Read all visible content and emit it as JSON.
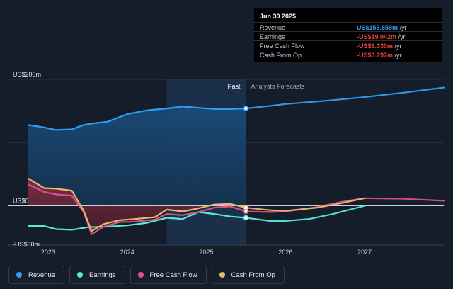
{
  "colors": {
    "background": "#151c2a",
    "revenue": "#2e9ef0",
    "earnings": "#58e8d8",
    "free_cash_flow": "#d9518a",
    "cash_from_op": "#e8b86a",
    "past_shade": "#1c3a5c"
  },
  "tooltip": {
    "date": "Jun 30 2025",
    "rows": [
      {
        "label": "Revenue",
        "value": "US$153.859m",
        "unit": "/yr",
        "color": "#2e9ef0"
      },
      {
        "label": "Earnings",
        "value": "-US$19.042m",
        "unit": "/yr",
        "color": "#e8453c"
      },
      {
        "label": "Free Cash Flow",
        "value": "-US$9.330m",
        "unit": "/yr",
        "color": "#e8453c"
      },
      {
        "label": "Cash From Op",
        "value": "-US$3.297m",
        "unit": "/yr",
        "color": "#e8453c"
      }
    ]
  },
  "legend": [
    {
      "label": "Revenue",
      "color": "#2e9ef0"
    },
    {
      "label": "Earnings",
      "color": "#58e8d8"
    },
    {
      "label": "Free Cash Flow",
      "color": "#d9518a"
    },
    {
      "label": "Cash From Op",
      "color": "#e8b86a"
    }
  ],
  "chart_data": {
    "type": "line",
    "past_label": "Past",
    "forecast_label": "Analysts Forecasts",
    "y_tick_labels": [
      {
        "value": 200,
        "label": "US$200m"
      },
      {
        "value": 0,
        "label": "US$0"
      },
      {
        "value": -60,
        "label": "-US$60m"
      }
    ],
    "x_ticks": [
      2023,
      2024,
      2025,
      2026,
      2027
    ],
    "xlim": [
      2022.5,
      2028.0
    ],
    "ylim": [
      -60,
      200
    ],
    "past_end": 2025.5,
    "highlight_start": 2024.5,
    "series": [
      {
        "name": "Revenue",
        "key": "revenue",
        "points": [
          [
            2022.75,
            128
          ],
          [
            2022.95,
            124
          ],
          [
            2023.1,
            120
          ],
          [
            2023.3,
            121
          ],
          [
            2023.45,
            128
          ],
          [
            2023.6,
            131
          ],
          [
            2023.75,
            133
          ],
          [
            2024.0,
            145
          ],
          [
            2024.25,
            151
          ],
          [
            2024.5,
            154
          ],
          [
            2024.7,
            157
          ],
          [
            2024.9,
            155
          ],
          [
            2025.1,
            153
          ],
          [
            2025.3,
            153
          ],
          [
            2025.5,
            154
          ]
        ]
      },
      {
        "name": "Revenue Forecast",
        "key": "revenue",
        "forecast": true,
        "points": [
          [
            2025.5,
            154
          ],
          [
            2025.8,
            158
          ],
          [
            2026.0,
            161
          ],
          [
            2026.5,
            166
          ],
          [
            2027.0,
            172
          ],
          [
            2027.5,
            179
          ],
          [
            2028.0,
            187
          ]
        ]
      },
      {
        "name": "Earnings",
        "key": "earnings",
        "points": [
          [
            2022.75,
            -32
          ],
          [
            2022.95,
            -32
          ],
          [
            2023.1,
            -37
          ],
          [
            2023.3,
            -38
          ],
          [
            2023.5,
            -34
          ],
          [
            2023.75,
            -33
          ],
          [
            2024.0,
            -31
          ],
          [
            2024.25,
            -27
          ],
          [
            2024.5,
            -19
          ],
          [
            2024.7,
            -21
          ],
          [
            2024.9,
            -10
          ],
          [
            2025.1,
            -13
          ],
          [
            2025.3,
            -17
          ],
          [
            2025.5,
            -19
          ]
        ]
      },
      {
        "name": "Earnings Forecast",
        "key": "earnings",
        "forecast": true,
        "points": [
          [
            2025.5,
            -19
          ],
          [
            2025.8,
            -24
          ],
          [
            2026.0,
            -24
          ],
          [
            2026.3,
            -21
          ],
          [
            2026.6,
            -13
          ],
          [
            2027.0,
            0
          ]
        ]
      },
      {
        "name": "Free Cash Flow",
        "key": "free_cash_flow",
        "points": [
          [
            2022.75,
            34
          ],
          [
            2022.95,
            22
          ],
          [
            2023.1,
            18
          ],
          [
            2023.3,
            16
          ],
          [
            2023.45,
            -10
          ],
          [
            2023.55,
            -45
          ],
          [
            2023.7,
            -33
          ],
          [
            2023.9,
            -26
          ],
          [
            2024.1,
            -25
          ],
          [
            2024.35,
            -22
          ],
          [
            2024.5,
            -13
          ],
          [
            2024.7,
            -15
          ],
          [
            2024.9,
            -10
          ],
          [
            2025.1,
            -3
          ],
          [
            2025.3,
            -1
          ],
          [
            2025.5,
            -9
          ]
        ]
      },
      {
        "name": "Free Cash Flow Forecast",
        "key": "free_cash_flow",
        "forecast": true,
        "points": [
          [
            2025.5,
            -9
          ],
          [
            2025.8,
            -10
          ],
          [
            2026.0,
            -9
          ],
          [
            2026.4,
            -2
          ],
          [
            2026.7,
            6
          ],
          [
            2027.0,
            12
          ],
          [
            2027.5,
            11
          ],
          [
            2028.0,
            8
          ]
        ]
      },
      {
        "name": "Cash From Op",
        "key": "cash_from_op",
        "points": [
          [
            2022.75,
            43
          ],
          [
            2022.95,
            28
          ],
          [
            2023.1,
            27
          ],
          [
            2023.3,
            24
          ],
          [
            2023.45,
            -8
          ],
          [
            2023.55,
            -40
          ],
          [
            2023.7,
            -29
          ],
          [
            2023.9,
            -23
          ],
          [
            2024.1,
            -21
          ],
          [
            2024.35,
            -18
          ],
          [
            2024.5,
            -6
          ],
          [
            2024.7,
            -9
          ],
          [
            2024.9,
            -4
          ],
          [
            2025.1,
            2
          ],
          [
            2025.3,
            3
          ],
          [
            2025.5,
            -3
          ]
        ]
      },
      {
        "name": "Cash From Op Forecast",
        "key": "cash_from_op",
        "forecast": true,
        "points": [
          [
            2025.5,
            -3
          ],
          [
            2025.8,
            -7
          ],
          [
            2026.0,
            -8
          ],
          [
            2026.4,
            -3
          ],
          [
            2026.7,
            4
          ],
          [
            2027.0,
            12
          ]
        ]
      }
    ]
  }
}
